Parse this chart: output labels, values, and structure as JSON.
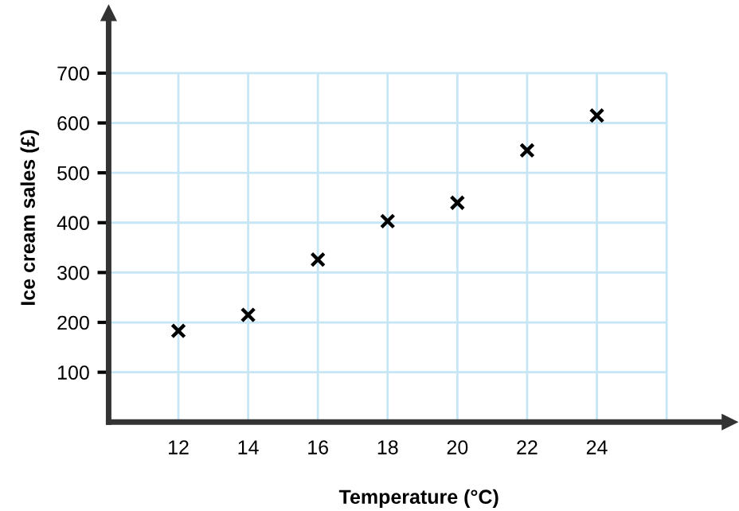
{
  "chart_data": {
    "type": "scatter",
    "xlabel": "Temperature (°C)",
    "ylabel": "Ice cream sales (£)",
    "x": [
      12,
      14,
      16,
      18,
      20,
      22,
      24
    ],
    "values": [
      183,
      215,
      326,
      403,
      440,
      545,
      615
    ],
    "color": "#000000",
    "marker": "cross",
    "xlim": [
      10,
      27.8
    ],
    "ylim": [
      0,
      820
    ],
    "xticks": [
      12,
      14,
      16,
      18,
      20,
      22,
      24,
      {
        "value": 26,
        "label": null
      }
    ],
    "yticks": [
      100,
      200,
      300,
      400,
      500,
      600,
      700
    ],
    "grid": true
  }
}
